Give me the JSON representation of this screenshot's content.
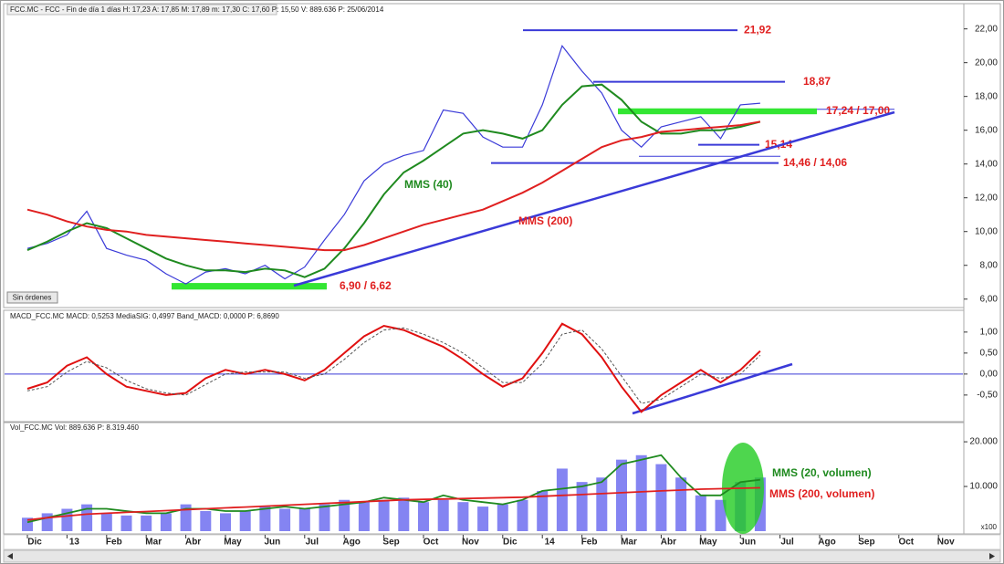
{
  "chart_data": [
    {
      "type": "line",
      "header": "FCC.MC - FCC - Fin de día 1 días  H: 17,23  A: 17,85  M: 17,89  m: 17,30  C: 17,60  P: 15,50  V: 889.636  P: 25/06/2014",
      "button": "Sin órdenes",
      "color": "#3a3ad8",
      "values": [
        9.0,
        9.3,
        9.8,
        11.2,
        9.0,
        8.6,
        8.3,
        7.5,
        6.9,
        7.6,
        7.8,
        7.5,
        8.0,
        7.2,
        7.9,
        9.5,
        11.0,
        13.0,
        14.0,
        14.5,
        14.8,
        17.2,
        17.0,
        15.6,
        15.0,
        15.0,
        17.5,
        21.0,
        19.5,
        18.2,
        16.0,
        15.0,
        16.2,
        16.5,
        16.8,
        15.5,
        17.5,
        17.6,
        null,
        null,
        null,
        null,
        null,
        null,
        null,
        null,
        null,
        null
      ],
      "series": [
        {
          "name": "MMS (40)",
          "color": "#1f8a1f",
          "values": [
            8.9,
            9.4,
            10.0,
            10.5,
            10.2,
            9.6,
            9.0,
            8.4,
            8.0,
            7.7,
            7.7,
            7.6,
            7.8,
            7.7,
            7.3,
            7.8,
            9.0,
            10.5,
            12.2,
            13.5,
            14.2,
            15.0,
            15.8,
            16.0,
            15.8,
            15.5,
            16.0,
            17.5,
            18.6,
            18.7,
            17.8,
            16.5,
            15.8,
            15.8,
            16.0,
            16.0,
            16.2,
            16.5,
            null,
            null,
            null,
            null,
            null,
            null,
            null,
            null,
            null,
            null
          ]
        },
        {
          "name": "MMS (200)",
          "color": "#e02020",
          "values": [
            11.3,
            11.0,
            10.6,
            10.3,
            10.1,
            10.0,
            9.8,
            9.7,
            9.6,
            9.5,
            9.4,
            9.3,
            9.2,
            9.1,
            9.0,
            8.9,
            8.9,
            9.2,
            9.6,
            10.0,
            10.4,
            10.7,
            11.0,
            11.3,
            11.8,
            12.3,
            12.9,
            13.6,
            14.3,
            15.0,
            15.4,
            15.6,
            15.9,
            16.0,
            16.1,
            16.2,
            16.3,
            16.5,
            null,
            null,
            null,
            null,
            null,
            null,
            null,
            null,
            null,
            null
          ]
        }
      ],
      "levels": [
        {
          "values": [
            21.92
          ],
          "label": "21,92"
        },
        {
          "values": [
            18.87
          ],
          "label": "18,87"
        },
        {
          "values": [
            15.14
          ],
          "label": "15,14"
        },
        {
          "values": [
            14.46,
            14.06
          ],
          "label": "14,46 / 14,06"
        }
      ],
      "bands": [
        {
          "high": 17.24,
          "low": 17.0,
          "label": "17,24 / 17,00"
        },
        {
          "high": 6.9,
          "low": 6.62,
          "label": "6,90 / 6,62"
        }
      ],
      "ylim": [
        5.5,
        22.9
      ],
      "yticks": [
        {
          "value": 6,
          "label": "6,00"
        },
        {
          "value": 8,
          "label": "8,00"
        },
        {
          "value": 10,
          "label": "10,00"
        },
        {
          "value": 12,
          "label": "12,00"
        },
        {
          "value": 14,
          "label": "14,00"
        },
        {
          "value": 16,
          "label": "16,00"
        },
        {
          "value": 18,
          "label": "18,00"
        },
        {
          "value": 20,
          "label": "20,00"
        },
        {
          "value": 22,
          "label": "22,00"
        }
      ]
    },
    {
      "type": "line",
      "header": "MACD_FCC.MC  MACD: 0,5253  MediaSIG: 0,4997  Band_MACD: 0,0000  P: 6,8690",
      "zero_line": true,
      "series": [
        {
          "color": "#e01010",
          "values": [
            -0.35,
            -0.2,
            0.2,
            0.4,
            0.0,
            -0.3,
            -0.4,
            -0.5,
            -0.45,
            -0.1,
            0.1,
            0.0,
            0.1,
            0.0,
            -0.15,
            0.1,
            0.5,
            0.9,
            1.15,
            1.05,
            0.85,
            0.65,
            0.35,
            0.0,
            -0.3,
            -0.1,
            0.5,
            1.2,
            0.95,
            0.4,
            -0.3,
            -0.9,
            -0.5,
            -0.2,
            0.1,
            -0.2,
            0.1,
            0.55,
            null,
            null,
            null,
            null,
            null,
            null,
            null,
            null,
            null,
            null
          ]
        },
        {
          "color": "#555555",
          "dashed": true,
          "values": [
            -0.4,
            -0.3,
            0.05,
            0.3,
            0.15,
            -0.15,
            -0.35,
            -0.45,
            -0.5,
            -0.25,
            0.0,
            0.05,
            0.05,
            0.05,
            -0.1,
            0.0,
            0.35,
            0.75,
            1.05,
            1.1,
            0.95,
            0.75,
            0.5,
            0.15,
            -0.2,
            -0.2,
            0.25,
            0.95,
            1.05,
            0.6,
            -0.05,
            -0.7,
            -0.6,
            -0.3,
            0.0,
            -0.1,
            0.0,
            0.45,
            null,
            null,
            null,
            null,
            null,
            null,
            null,
            null,
            null,
            null
          ]
        }
      ],
      "ylim": [
        -1.09,
        1.41
      ],
      "yticks": [
        {
          "value": -0.5,
          "label": "-0,50"
        },
        {
          "value": 0,
          "label": "0,00"
        },
        {
          "value": 0.5,
          "label": "0,50"
        },
        {
          "value": 1,
          "label": "1,00"
        }
      ]
    },
    {
      "type": "bar",
      "header": "Vol_FCC.MC  Vol: 889.636  P: 8.319.460",
      "unit_label": "x100",
      "color": "#6f6ff0",
      "categories": [
        "Dic",
        null,
        "13",
        null,
        "Feb",
        null,
        "Mar",
        null,
        "Abr",
        null,
        "May",
        null,
        "Jun",
        null,
        "Jul",
        null,
        "Ago",
        null,
        "Sep",
        null,
        "Oct",
        null,
        "Nov",
        null,
        "Dic",
        null,
        "14",
        null,
        "Feb",
        null,
        "Mar",
        null,
        "Abr",
        null,
        "May",
        null,
        "Jun",
        null,
        "Jul",
        null,
        "Ago",
        null,
        "Sep",
        null,
        "Oct",
        null,
        "Nov",
        null
      ],
      "values": [
        3000,
        4000,
        5000,
        6000,
        4000,
        3500,
        3500,
        4000,
        6000,
        4500,
        4000,
        4500,
        5500,
        5000,
        5000,
        6000,
        7000,
        6500,
        7000,
        7500,
        6500,
        7000,
        6500,
        5500,
        6000,
        7000,
        9000,
        14000,
        11000,
        12000,
        16000,
        17000,
        15000,
        12000,
        8000,
        7000,
        11000,
        12000,
        null,
        null,
        null,
        null,
        null,
        null,
        null,
        null,
        null,
        null
      ],
      "series": [
        {
          "name": "MMS (20, volumen)",
          "color": "#1f8a1f",
          "values": [
            2000,
            3000,
            4000,
            5000,
            5000,
            4500,
            4000,
            4000,
            5000,
            5000,
            4500,
            4500,
            5000,
            5500,
            5000,
            5500,
            6000,
            6500,
            7500,
            7000,
            6500,
            8000,
            7000,
            6500,
            6000,
            7000,
            9000,
            9500,
            10000,
            11000,
            15000,
            16000,
            17000,
            12000,
            8000,
            8000,
            11000,
            11500,
            null,
            null,
            null,
            null,
            null,
            null,
            null,
            null,
            null,
            null
          ]
        },
        {
          "name": "MMS (200, volumen)",
          "color": "#e02020",
          "values": [
            2500,
            3000,
            3400,
            3800,
            4000,
            4200,
            4400,
            4600,
            4800,
            5000,
            5200,
            5400,
            5600,
            5800,
            6000,
            6200,
            6400,
            6600,
            6800,
            7000,
            7100,
            7200,
            7300,
            7400,
            7500,
            7600,
            7800,
            8000,
            8200,
            8400,
            8600,
            8800,
            9000,
            9200,
            9400,
            9500,
            9600,
            9700,
            null,
            null,
            null,
            null,
            null,
            null,
            null,
            null,
            null,
            null
          ]
        }
      ],
      "ylim": [
        0,
        23900
      ],
      "yticks": [
        {
          "value": 10000,
          "label": "10.000"
        },
        {
          "value": 20000,
          "label": "20.000"
        }
      ]
    }
  ]
}
